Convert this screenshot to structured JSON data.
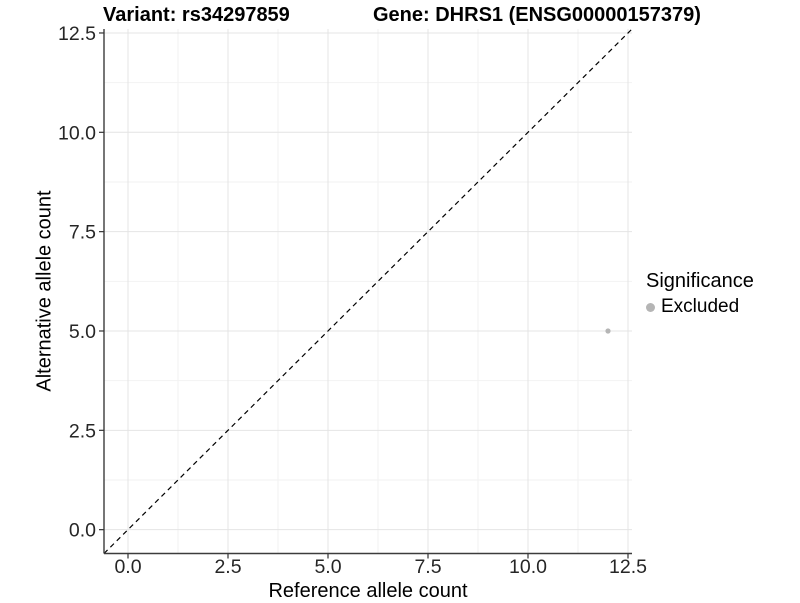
{
  "header": {
    "title_variant": "Variant: rs34297859",
    "title_gene": "Gene: DHRS1 (ENSG00000157379)"
  },
  "legend": {
    "title": "Significance",
    "items": [
      {
        "label": "Excluded",
        "color": "#b5b5b5"
      }
    ]
  },
  "chart_data": {
    "type": "scatter",
    "title": "Variant: rs34297859   Gene: DHRS1 (ENSG00000157379)",
    "xlabel": "Reference allele count",
    "ylabel": "Alternative allele count",
    "xlim": [
      -0.6,
      12.6
    ],
    "ylim": [
      -0.6,
      12.6
    ],
    "x_ticks": [
      0.0,
      2.5,
      5.0,
      7.5,
      10.0,
      12.5
    ],
    "y_ticks": [
      0.0,
      2.5,
      5.0,
      7.5,
      10.0,
      12.5
    ],
    "x_tick_labels": [
      "0.0",
      "2.5",
      "5.0",
      "7.5",
      "10.0",
      "12.5"
    ],
    "y_tick_labels": [
      "0.0",
      "2.5",
      "5.0",
      "7.5",
      "10.0",
      "12.5"
    ],
    "minor_ticks": [
      1.25,
      3.75,
      6.25,
      8.75,
      11.25
    ],
    "grid": true,
    "legend_position": "right",
    "series": [
      {
        "name": "Excluded",
        "color": "#b5b5b5",
        "points": [
          {
            "x": 12,
            "y": 5
          }
        ]
      }
    ],
    "reference_line": {
      "style": "dashed",
      "slope": 1,
      "intercept": 0,
      "color": "#000000"
    }
  },
  "colors": {
    "grid_major": "#e4e4e4",
    "grid_minor": "#f2f2f2",
    "axis_line": "#3c3c3c",
    "tick_mark": "#333333",
    "tick_label": "#262626",
    "point": "#b5b5b5",
    "background": "#ffffff"
  }
}
